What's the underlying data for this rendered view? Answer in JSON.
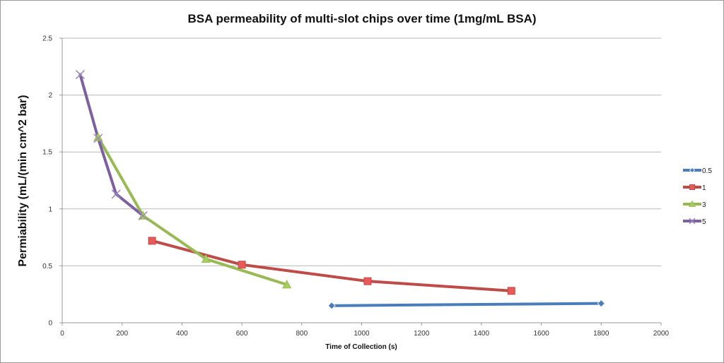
{
  "chart_data": {
    "type": "line",
    "title": "BSA permeability of multi-slot chips over time (1mg/mL BSA)",
    "xlabel": "Time of Collection (s)",
    "ylabel": "Permiability (mL/(min cm^2 bar)",
    "xlim": [
      0,
      2000
    ],
    "ylim": [
      0,
      2.5
    ],
    "xticks": [
      0,
      200,
      400,
      600,
      800,
      1000,
      1200,
      1400,
      1600,
      1800,
      2000
    ],
    "yticks": [
      0,
      0.5,
      1,
      1.5,
      2,
      2.5
    ],
    "grid": "horizontal",
    "legend_position": "right",
    "series": [
      {
        "name": "0.5",
        "color": "#4a7ebb",
        "marker": "diamond",
        "x": [
          900,
          1800
        ],
        "y": [
          0.15,
          0.17
        ]
      },
      {
        "name": "1",
        "color": "#be4b48",
        "marker": "square",
        "x": [
          300,
          600,
          1020,
          1500
        ],
        "y": [
          0.72,
          0.51,
          0.365,
          0.28
        ]
      },
      {
        "name": "3",
        "color": "#98b954",
        "marker": "triangle",
        "x": [
          120,
          270,
          480,
          750
        ],
        "y": [
          1.63,
          0.94,
          0.56,
          0.335
        ]
      },
      {
        "name": "5",
        "color": "#7d60a0",
        "marker": "x",
        "x": [
          60,
          120,
          180,
          270
        ],
        "y": [
          2.18,
          1.62,
          1.13,
          0.94
        ]
      }
    ]
  }
}
